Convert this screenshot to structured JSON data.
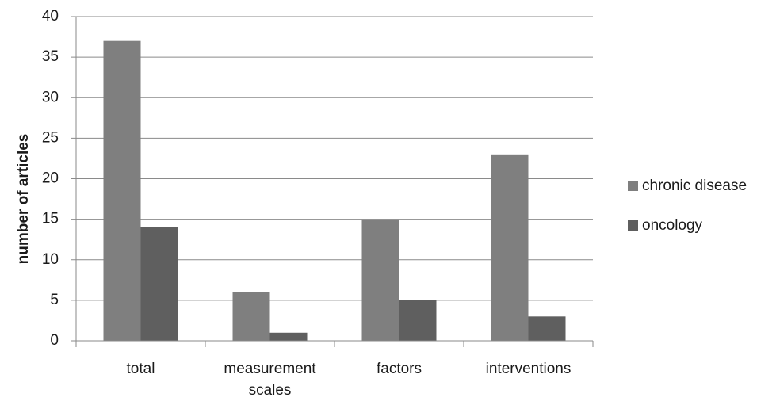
{
  "chart_data": {
    "type": "bar",
    "title": "",
    "xlabel": "",
    "ylabel": "number of articles",
    "ylim": [
      0,
      40
    ],
    "yticks": [
      0,
      5,
      10,
      15,
      20,
      25,
      30,
      35,
      40
    ],
    "grid": true,
    "legend_position": "right",
    "categories": [
      [
        "total"
      ],
      [
        "measurement",
        "scales"
      ],
      [
        "factors"
      ],
      [
        "interventions"
      ]
    ],
    "series": [
      {
        "name": "chronic disease",
        "color": "#7f7f7f",
        "values": [
          37,
          6,
          15,
          23
        ]
      },
      {
        "name": "oncology",
        "color": "#5f5f5f",
        "values": [
          14,
          1,
          5,
          3
        ]
      }
    ]
  }
}
